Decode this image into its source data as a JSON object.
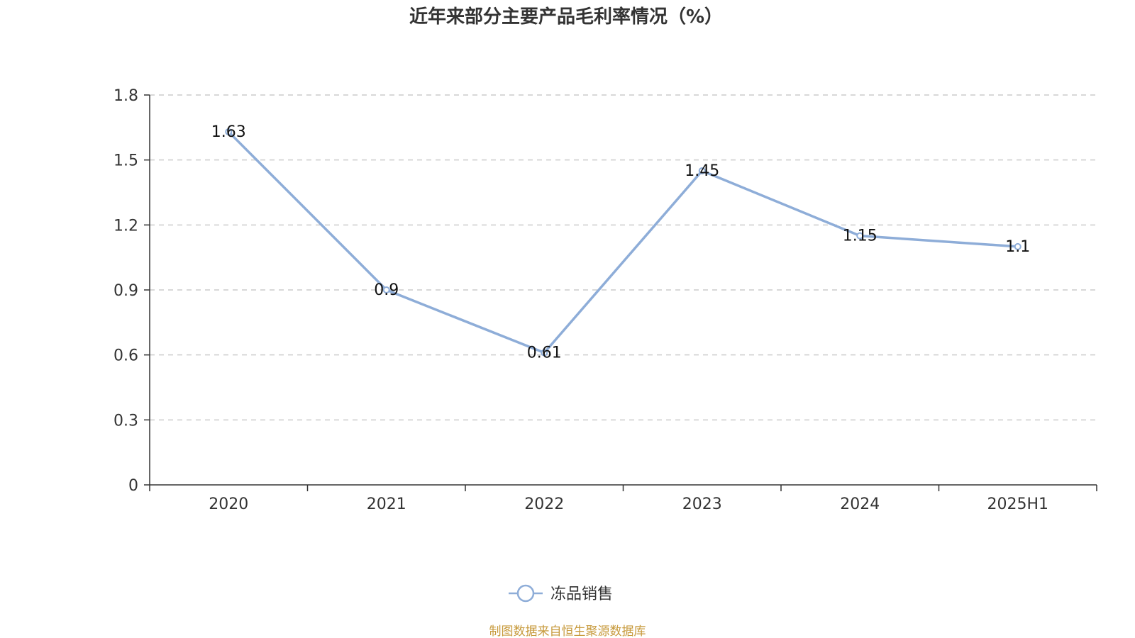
{
  "chart_data": {
    "type": "line",
    "title": "近年来部分主要产品毛利率情况（%）",
    "categories": [
      "2020",
      "2021",
      "2022",
      "2023",
      "2024",
      "2025H1"
    ],
    "series": [
      {
        "name": "冻品销售",
        "values": [
          1.63,
          0.9,
          0.61,
          1.45,
          1.15,
          1.1
        ],
        "labels": [
          "1.63",
          "0.9",
          "0.61",
          "1.45",
          "1.15",
          "1.1"
        ],
        "color": "#8eadd8"
      }
    ],
    "ylim": [
      0,
      1.8
    ],
    "yticks": [
      "0",
      "0.3",
      "0.6",
      "0.9",
      "1.2",
      "1.5",
      "1.8"
    ],
    "xlabel": "",
    "ylabel": "",
    "grid": true,
    "legend_position": "bottom-center"
  },
  "footer": {
    "source": "制图数据来自恒生聚源数据库",
    "source_color": "#c79a3c"
  }
}
